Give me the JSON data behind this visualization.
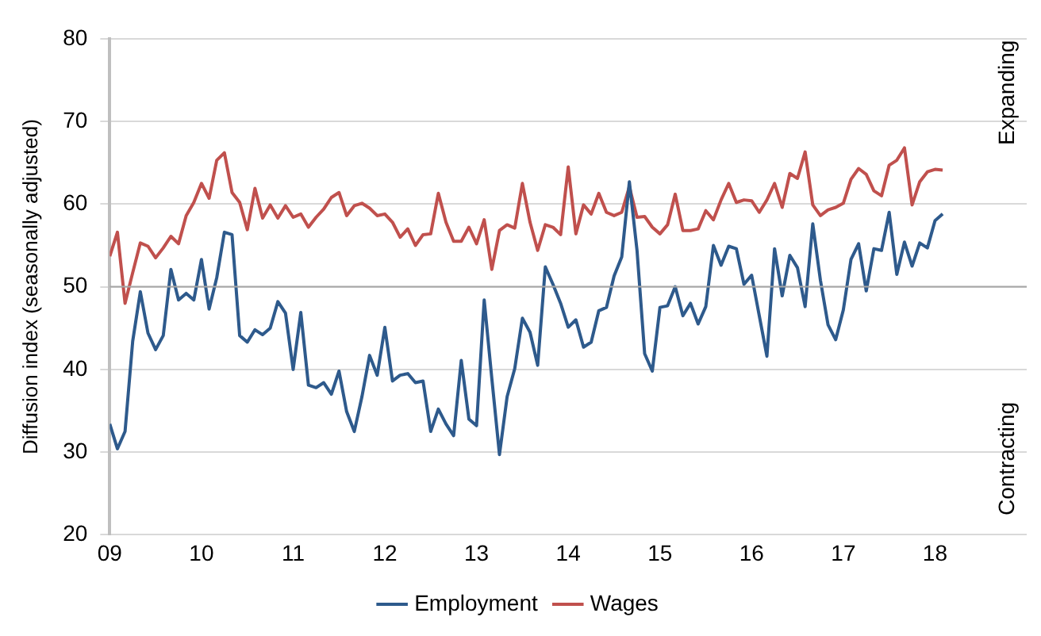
{
  "chart_data": {
    "type": "line",
    "ylabel": "Diffusion index (seasonally adjusted)",
    "annotations": [
      "Expanding",
      "Contracting"
    ],
    "xlim": [
      "2009",
      "2019"
    ],
    "xticks": [
      {
        "value": "2009",
        "label": "09"
      },
      {
        "value": "2010",
        "label": "10"
      },
      {
        "value": "2011",
        "label": "11"
      },
      {
        "value": "2012",
        "label": "12"
      },
      {
        "value": "2013",
        "label": "13"
      },
      {
        "value": "2014",
        "label": "14"
      },
      {
        "value": "2015",
        "label": "15"
      },
      {
        "value": "2016",
        "label": "16"
      },
      {
        "value": "2017",
        "label": "17"
      },
      {
        "value": "2018",
        "label": "18"
      }
    ],
    "ylim": [
      20,
      80
    ],
    "yticks": [
      20,
      30,
      40,
      50,
      60,
      70,
      80
    ],
    "grid": "y",
    "legend": "bottom",
    "marker": "none",
    "line_style": "solid",
    "ref_lines": [
      {
        "axis": "y",
        "value": 50,
        "color": "#a6a6a6"
      }
    ],
    "series": [
      {
        "name": "Employment",
        "color": "#2e5a8c",
        "values": [
          33.4,
          30.4,
          32.5,
          43.4,
          49.4,
          44.4,
          42.4,
          44.1,
          52.1,
          48.4,
          49.2,
          48.4,
          53.3,
          47.3,
          51.1,
          56.6,
          56.3,
          44.1,
          43.3,
          44.8,
          44.2,
          45.0,
          48.2,
          46.8,
          40.0,
          46.9,
          38.1,
          37.8,
          38.4,
          37.0,
          39.8,
          34.9,
          32.5,
          36.7,
          41.7,
          39.3,
          45.1,
          38.6,
          39.3,
          39.5,
          38.4,
          38.6,
          32.5,
          35.2,
          33.4,
          32.0,
          41.1,
          34.0,
          33.2,
          48.4,
          38.9,
          29.7,
          36.7,
          40.1,
          46.2,
          44.5,
          40.5,
          52.4,
          50.3,
          48.0,
          45.1,
          46.0,
          42.7,
          43.3,
          47.1,
          47.5,
          51.3,
          53.6,
          62.7,
          54.4,
          41.9,
          39.8,
          47.5,
          47.7,
          50.0,
          46.5,
          48.0,
          45.5,
          47.6,
          55.0,
          52.6,
          54.9,
          54.6,
          50.3,
          51.4,
          46.5,
          41.6,
          54.6,
          48.9,
          53.8,
          52.3,
          47.6,
          57.6,
          50.8,
          45.4,
          43.6,
          47.2,
          53.3,
          55.2,
          49.5,
          54.6,
          54.4,
          59.0,
          51.5,
          55.4,
          52.5,
          55.3,
          54.7,
          58.0,
          58.8
        ]
      },
      {
        "name": "Wages",
        "color": "#c0504d",
        "values": [
          53.7,
          56.6,
          48.0,
          51.7,
          55.3,
          54.9,
          53.5,
          54.7,
          56.1,
          55.2,
          58.6,
          60.2,
          62.5,
          60.7,
          65.3,
          66.2,
          61.4,
          60.2,
          56.9,
          61.9,
          58.3,
          59.9,
          58.3,
          59.8,
          58.4,
          58.8,
          57.2,
          58.4,
          59.4,
          60.8,
          61.4,
          58.6,
          59.8,
          60.1,
          59.5,
          58.6,
          58.8,
          57.8,
          56.0,
          57.0,
          55.0,
          56.3,
          56.4,
          61.3,
          57.8,
          55.5,
          55.5,
          57.2,
          55.2,
          58.1,
          52.1,
          56.8,
          57.5,
          57.1,
          62.5,
          57.8,
          54.4,
          57.5,
          57.2,
          56.3,
          64.5,
          56.4,
          59.9,
          58.8,
          61.3,
          59.0,
          58.6,
          59.0,
          62.1,
          58.4,
          58.5,
          57.2,
          56.4,
          57.5,
          61.2,
          56.8,
          56.8,
          57.0,
          59.2,
          58.1,
          60.5,
          62.5,
          60.2,
          60.5,
          60.4,
          59.0,
          60.5,
          62.5,
          59.6,
          63.7,
          63.1,
          66.3,
          59.9,
          58.6,
          59.3,
          59.6,
          60.1,
          63.0,
          64.3,
          63.6,
          61.6,
          61.0,
          64.7,
          65.3,
          66.8,
          59.9,
          62.7,
          63.9,
          64.2,
          64.1
        ]
      }
    ],
    "x": [
      "2009-01",
      "2009-02",
      "2009-03",
      "2009-04",
      "2009-05",
      "2009-06",
      "2009-07",
      "2009-08",
      "2009-09",
      "2009-10",
      "2009-11",
      "2009-12",
      "2010-01",
      "2010-02",
      "2010-03",
      "2010-04",
      "2010-05",
      "2010-06",
      "2010-07",
      "2010-08",
      "2010-09",
      "2010-10",
      "2010-11",
      "2010-12",
      "2011-01",
      "2011-02",
      "2011-03",
      "2011-04",
      "2011-05",
      "2011-06",
      "2011-07",
      "2011-08",
      "2011-09",
      "2011-10",
      "2011-11",
      "2011-12",
      "2012-01",
      "2012-02",
      "2012-03",
      "2012-04",
      "2012-05",
      "2012-06",
      "2012-07",
      "2012-08",
      "2012-09",
      "2012-10",
      "2012-11",
      "2012-12",
      "2013-01",
      "2013-02",
      "2013-03",
      "2013-04",
      "2013-05",
      "2013-06",
      "2013-07",
      "2013-08",
      "2013-09",
      "2013-10",
      "2013-11",
      "2013-12",
      "2014-01",
      "2014-02",
      "2014-03",
      "2014-04",
      "2014-05",
      "2014-06",
      "2014-07",
      "2014-08",
      "2014-09",
      "2014-10",
      "2014-11",
      "2014-12",
      "2015-01",
      "2015-02",
      "2015-03",
      "2015-04",
      "2015-05",
      "2015-06",
      "2015-07",
      "2015-08",
      "2015-09",
      "2015-10",
      "2015-11",
      "2015-12",
      "2016-01",
      "2016-02",
      "2016-03",
      "2016-04",
      "2016-05",
      "2016-06",
      "2016-07",
      "2016-08",
      "2016-09",
      "2016-10",
      "2016-11",
      "2016-12",
      "2017-01",
      "2017-02",
      "2017-03",
      "2017-04",
      "2017-05",
      "2017-06",
      "2017-07",
      "2017-08",
      "2017-09",
      "2017-10",
      "2017-11",
      "2017-12",
      "2018-01",
      "2018-02"
    ]
  }
}
